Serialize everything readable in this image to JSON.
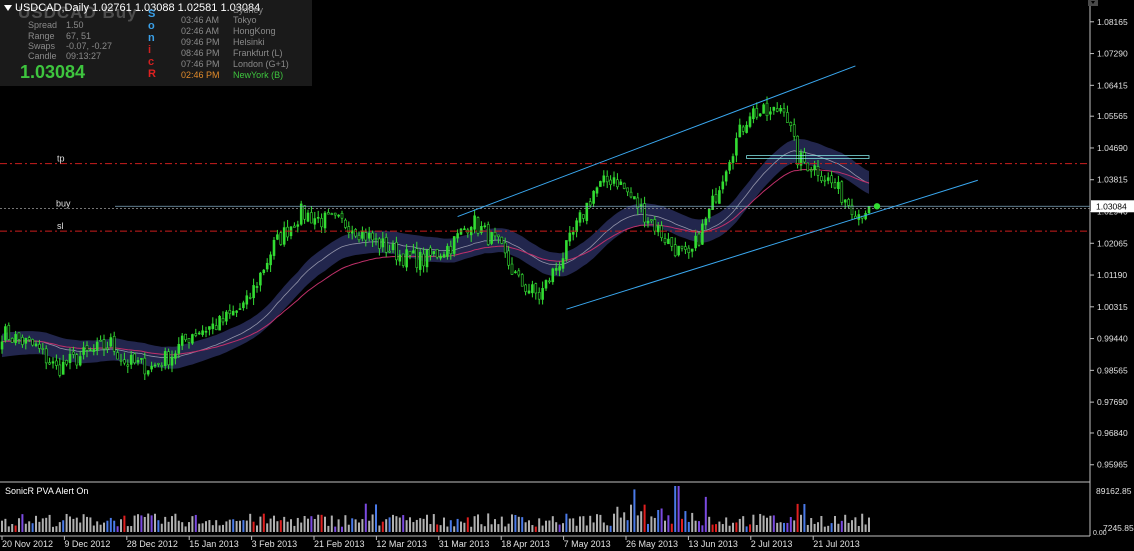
{
  "header": {
    "symbol_ghost": "USDCAD  Buy",
    "title": "USDCAD,Daily  1.02761 1.03088 1.02581 1.03084"
  },
  "info": {
    "stats": [
      {
        "label": "Spread",
        "value": "1.50"
      },
      {
        "label": "Range",
        "value": "67, 51"
      },
      {
        "label": "Swaps",
        "value": "-0.07, -0.27"
      },
      {
        "label": "Candle",
        "value": "09:13:27"
      }
    ],
    "price": "1.03084",
    "sessions": [
      {
        "time": "",
        "city": "Sydney",
        "color": "#8a8a8a"
      },
      {
        "time": "03:46 AM",
        "city": "Tokyo",
        "color": "#8a8a8a"
      },
      {
        "time": "02:46 AM",
        "city": "HongKong",
        "color": "#8a8a8a"
      },
      {
        "time": "09:46 PM",
        "city": "Helsinki",
        "color": "#8a8a8a"
      },
      {
        "time": "08:46 PM",
        "city": "Frankfurt  (L)",
        "color": "#8a8a8a"
      },
      {
        "time": "07:46 PM",
        "city": "London  (G+1)",
        "color": "#8a8a8a"
      },
      {
        "time": "02:46 PM",
        "city": "NewYork  (B)",
        "color": "#3ec43e",
        "time_color": "#e08a2a"
      }
    ],
    "vertical_letters": [
      {
        "ch": "S",
        "color": "#3aa0e8"
      },
      {
        "ch": "o",
        "color": "#3aa0e8"
      },
      {
        "ch": "n",
        "color": "#3aa0e8"
      },
      {
        "ch": "i",
        "color": "#d02020"
      },
      {
        "ch": "c",
        "color": "#d02020"
      },
      {
        "ch": "R",
        "color": "#e02020"
      }
    ]
  },
  "levels": {
    "tp": "tp",
    "buy": "buy",
    "sl": "sl"
  },
  "current_price_label": "1.03084",
  "indicator": {
    "label": "SonicR PVA   Alert On",
    "top_label": "89162.85",
    "bottom_label": "7245.85",
    "zero_label": "0.00"
  },
  "colors": {
    "bull": "#33dd33",
    "bear": "#33dd33",
    "band": "#262a55",
    "ema": "#b0b0c0",
    "ma_slow": "#c0306a",
    "channel": "#3aa8f0",
    "level_red": "#cc1e1e",
    "price_line": "#7fa8c0",
    "dot": "#33dd33",
    "vol_blue": "#4a7ae8",
    "vol_violet": "#7a4ae0",
    "vol_gray": "#b0b0b0",
    "vol_red": "#e02020"
  },
  "chart_data": {
    "type": "candlestick",
    "symbol": "USDCAD",
    "timeframe": "Daily",
    "ohlc_last": {
      "open": 1.02761,
      "high": 1.03088,
      "low": 1.02581,
      "close": 1.03084
    },
    "ylim": [
      0.956,
      1.086
    ],
    "y_ticks": [
      1.08165,
      1.0729,
      1.06415,
      1.05565,
      1.0469,
      1.03815,
      1.0294,
      1.02065,
      1.0119,
      1.00315,
      0.9944,
      0.98565,
      0.9769,
      0.9684,
      0.95965
    ],
    "x_ticks": [
      "20 Nov 2012",
      "9 Dec 2012",
      "28 Dec 2012",
      "15 Jan 2013",
      "3 Feb 2013",
      "21 Feb 2013",
      "12 Mar 2013",
      "31 Mar 2013",
      "18 Apr 2013",
      "7 May 2013",
      "26 May 2013",
      "13 Jun 2013",
      "2 Jul 2013",
      "21 Jul 2013"
    ],
    "levels": {
      "tp": 1.0426,
      "buy": 1.0302,
      "sl": 1.024,
      "current": 1.03084
    },
    "anchors": [
      [
        0,
        0.996
      ],
      [
        10,
        0.992
      ],
      [
        16,
        0.986
      ],
      [
        22,
        0.989
      ],
      [
        32,
        0.993
      ],
      [
        36,
        0.988
      ],
      [
        44,
        0.9865
      ],
      [
        50,
        0.99
      ],
      [
        56,
        0.996
      ],
      [
        64,
        0.9985
      ],
      [
        72,
        1.004
      ],
      [
        80,
        1.02
      ],
      [
        88,
        1.029
      ],
      [
        94,
        1.027
      ],
      [
        102,
        1.026
      ],
      [
        110,
        1.021
      ],
      [
        118,
        1.017
      ],
      [
        124,
        1.016
      ],
      [
        132,
        1.02
      ],
      [
        138,
        1.027
      ],
      [
        146,
        1.02
      ],
      [
        152,
        1.01
      ],
      [
        158,
        1.006
      ],
      [
        166,
        1.019
      ],
      [
        174,
        1.035
      ],
      [
        180,
        1.039
      ],
      [
        188,
        1.03
      ],
      [
        196,
        1.021
      ],
      [
        202,
        1.016
      ],
      [
        208,
        1.029
      ],
      [
        214,
        1.045
      ],
      [
        220,
        1.057
      ],
      [
        226,
        1.056
      ],
      [
        230,
        1.059
      ],
      [
        234,
        1.044
      ],
      [
        240,
        1.041
      ],
      [
        246,
        1.035
      ],
      [
        252,
        1.029
      ],
      [
        255,
        1.0308
      ]
    ],
    "channel": {
      "upper": [
        [
          134,
          1.028
        ],
        [
          251,
          1.0695
        ]
      ],
      "lower": [
        [
          166,
          1.0025
        ],
        [
          287,
          1.038
        ]
      ]
    },
    "volume": {
      "ylim": [
        0,
        89162.85
      ]
    }
  }
}
